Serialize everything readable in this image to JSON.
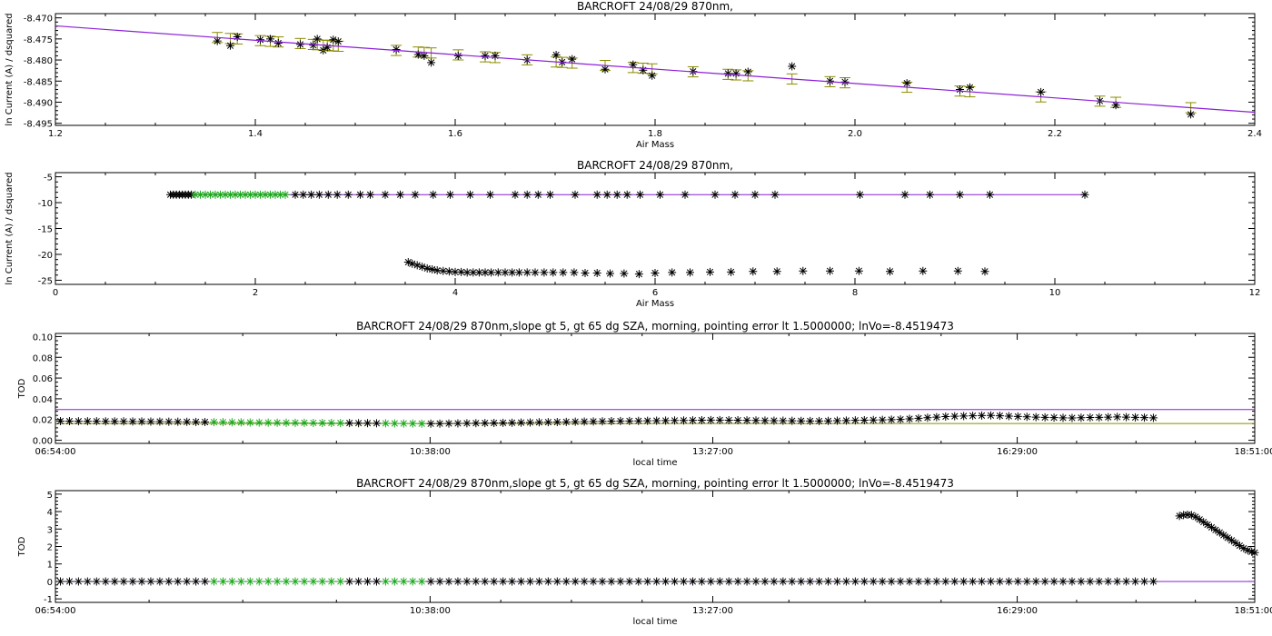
{
  "colors": {
    "fit_line": "#8a1fd6",
    "error_bar": "#8b8b00",
    "point": "#000000",
    "selected_point": "#1aa81a",
    "axis": "#000000"
  },
  "chart_data": [
    {
      "type": "scatter",
      "title": "BARCROFT 24/08/29 870nm,",
      "xlabel": "Air Mass",
      "ylabel": "ln Current (A) / dsquared",
      "xlim": [
        1.2,
        2.4
      ],
      "ylim": [
        -8.4955,
        -8.469
      ],
      "xticks": [
        1.2,
        1.4,
        1.6,
        1.8,
        2.0,
        2.2,
        2.4
      ],
      "xtick_labels": [
        "1.2",
        "1.4",
        "1.6",
        "1.8",
        "2.0",
        "2.2",
        "2.4"
      ],
      "yticks": [
        -8.47,
        -8.475,
        -8.48,
        -8.485,
        -8.49,
        -8.495
      ],
      "ytick_labels": [
        "-8.470",
        "-8.475",
        "-8.480",
        "-8.485",
        "-8.490",
        "-8.495"
      ],
      "fit_line": {
        "x": [
          1.2,
          2.4
        ],
        "y": [
          -8.4719,
          -8.4924
        ]
      },
      "points": {
        "x": [
          1.362,
          1.375,
          1.382,
          1.405,
          1.415,
          1.423,
          1.445,
          1.458,
          1.462,
          1.468,
          1.472,
          1.478,
          1.483,
          1.541,
          1.563,
          1.569,
          1.576,
          1.603,
          1.63,
          1.64,
          1.672,
          1.701,
          1.707,
          1.717,
          1.75,
          1.778,
          1.788,
          1.797,
          1.838,
          1.873,
          1.881,
          1.893,
          1.937,
          1.975,
          1.99,
          2.052,
          2.105,
          2.115,
          2.186,
          2.245,
          2.261,
          2.336
        ],
        "y": [
          -8.4755,
          -8.4766,
          -8.4745,
          -8.4752,
          -8.475,
          -8.476,
          -8.4763,
          -8.4765,
          -8.475,
          -8.4777,
          -8.477,
          -8.4752,
          -8.4756,
          -8.4775,
          -8.4787,
          -8.479,
          -8.4806,
          -8.479,
          -8.479,
          -8.479,
          -8.48,
          -8.4788,
          -8.4805,
          -8.4798,
          -8.4822,
          -8.4811,
          -8.4824,
          -8.4837,
          -8.4827,
          -8.4832,
          -8.4832,
          -8.4828,
          -8.4815,
          -8.485,
          -8.4852,
          -8.4855,
          -8.487,
          -8.4865,
          -8.4876,
          -8.4897,
          -8.4907,
          -8.4929
        ],
        "err": 0.0012
      }
    },
    {
      "type": "scatter",
      "title": "BARCROFT 24/08/29 870nm,",
      "xlabel": "Air Mass",
      "ylabel": "ln Current (A) / dsquared",
      "xlim": [
        0,
        12
      ],
      "ylim": [
        -25.8,
        -4.2
      ],
      "xticks": [
        0,
        2,
        4,
        6,
        8,
        10,
        12
      ],
      "xtick_labels": [
        "0",
        "2",
        "4",
        "6",
        "8",
        "10",
        "12"
      ],
      "yticks": [
        -5,
        -10,
        -15,
        -20,
        -25
      ],
      "ytick_labels": [
        "-5",
        "-10",
        "-15",
        "-20",
        "-25"
      ],
      "fit_line": {
        "x": [
          1.15,
          10.3
        ],
        "y": [
          -8.45,
          -8.45
        ]
      },
      "upper_series_y": -8.46,
      "upper_series_x": [
        1.15,
        1.18,
        1.21,
        1.24,
        1.27,
        1.3,
        1.33,
        1.36,
        1.4,
        1.45,
        1.5,
        1.55,
        1.6,
        1.65,
        1.7,
        1.75,
        1.8,
        1.85,
        1.9,
        1.95,
        2.0,
        2.05,
        2.1,
        2.15,
        2.2,
        2.25,
        2.3,
        2.4,
        2.48,
        2.56,
        2.64,
        2.73,
        2.82,
        2.93,
        3.05,
        3.15,
        3.3,
        3.45,
        3.6,
        3.78,
        3.95,
        4.15,
        4.35,
        4.6,
        4.72,
        4.83,
        4.95,
        5.2,
        5.42,
        5.52,
        5.62,
        5.72,
        5.85,
        6.05,
        6.3,
        6.6,
        6.8,
        7.0,
        7.2,
        8.05,
        8.5,
        8.75,
        9.05,
        9.35,
        10.3
      ],
      "selected_x": [
        1.4,
        1.45,
        1.5,
        1.55,
        1.6,
        1.65,
        1.7,
        1.75,
        1.8,
        1.85,
        1.9,
        1.95,
        2.0,
        2.05,
        2.1,
        2.15,
        2.2,
        2.25,
        2.3
      ],
      "lower_series": {
        "x": [
          3.53,
          3.57,
          3.62,
          3.67,
          3.72,
          3.77,
          3.82,
          3.88,
          3.94,
          4.0,
          4.06,
          4.12,
          4.18,
          4.24,
          4.3,
          4.36,
          4.43,
          4.5,
          4.57,
          4.64,
          4.72,
          4.8,
          4.89,
          4.98,
          5.08,
          5.19,
          5.3,
          5.42,
          5.55,
          5.69,
          5.84,
          6.0,
          6.17,
          6.35,
          6.55,
          6.76,
          6.98,
          7.22,
          7.48,
          7.75,
          8.04,
          8.35,
          8.68,
          9.03,
          9.3
        ],
        "y": [
          -21.5,
          -21.8,
          -22.1,
          -22.4,
          -22.7,
          -22.9,
          -23.1,
          -23.2,
          -23.3,
          -23.4,
          -23.4,
          -23.5,
          -23.5,
          -23.5,
          -23.5,
          -23.5,
          -23.5,
          -23.5,
          -23.5,
          -23.5,
          -23.5,
          -23.5,
          -23.5,
          -23.5,
          -23.5,
          -23.5,
          -23.6,
          -23.6,
          -23.7,
          -23.7,
          -23.8,
          -23.6,
          -23.5,
          -23.5,
          -23.4,
          -23.4,
          -23.3,
          -23.3,
          -23.2,
          -23.2,
          -23.2,
          -23.3,
          -23.2,
          -23.2,
          -23.3
        ]
      }
    },
    {
      "type": "scatter",
      "title": "BARCROFT 24/08/29 870nm,slope gt 5, gt 65 dg SZA, morning, pointing error lt 1.5000000; lnVo=-8.4519473",
      "xlabel": "local time",
      "ylabel": "TOD",
      "xlim": [
        6.9,
        18.85
      ],
      "ylim": [
        -0.003,
        0.103
      ],
      "xticks": [
        6.9,
        10.6333,
        13.45,
        16.4833,
        18.85
      ],
      "xtick_labels": [
        "06:54:00",
        "10:38:00",
        "13:27:00",
        "16:29:00",
        "18:51:00"
      ],
      "yticks": [
        0,
        0.02,
        0.04,
        0.06,
        0.08,
        0.1
      ],
      "ytick_labels": [
        "0.00",
        "0.02",
        "0.04",
        "0.06",
        "0.08",
        "0.10"
      ],
      "hlines": [
        {
          "y": 0.0296,
          "x": [
            6.9,
            18.85
          ],
          "color": "#8a1fd6"
        },
        {
          "y": 0.0162,
          "x": [
            6.9,
            18.85
          ],
          "color": "#8b8b00"
        }
      ],
      "tod_profile": {
        "x": [
          6.9,
          8.0,
          9.0,
          10.0,
          10.65,
          11.5,
          12.5,
          13.5,
          14.5,
          15.3,
          15.8,
          16.2,
          16.6,
          17.0,
          17.5,
          17.9
        ],
        "y": [
          0.0185,
          0.018,
          0.017,
          0.0165,
          0.016,
          0.017,
          0.0185,
          0.0195,
          0.0185,
          0.02,
          0.023,
          0.024,
          0.0225,
          0.0215,
          0.0225,
          0.0215
        ]
      },
      "time_range": [
        6.95,
        17.9
      ],
      "time_step": 0.09,
      "selected_time_ranges": [
        [
          8.4,
          9.75
        ],
        [
          10.1,
          10.62
        ]
      ]
    },
    {
      "type": "scatter",
      "title": "BARCROFT 24/08/29 870nm,slope gt 5, gt 65 dg SZA, morning, pointing error lt 1.5000000; lnVo=-8.4519473",
      "xlabel": "local time",
      "ylabel": "TOD",
      "xlim": [
        6.9,
        18.85
      ],
      "ylim": [
        -1.2,
        5.2
      ],
      "xticks": [
        6.9,
        10.6333,
        13.45,
        16.4833,
        18.85
      ],
      "xtick_labels": [
        "06:54:00",
        "10:38:00",
        "13:27:00",
        "16:29:00",
        "18:51:00"
      ],
      "yticks": [
        -1,
        0,
        1,
        2,
        3,
        4,
        5
      ],
      "ytick_labels": [
        "-1",
        "0",
        "1",
        "2",
        "3",
        "4",
        "5"
      ],
      "fit_line": {
        "x": [
          6.9,
          18.85
        ],
        "y": [
          0,
          0
        ]
      },
      "time_range": [
        6.95,
        17.9
      ],
      "time_step": 0.09,
      "selected_time_ranges": [
        [
          8.4,
          9.75
        ],
        [
          10.1,
          10.62
        ]
      ],
      "evening_series": {
        "x": [
          18.1,
          18.14,
          18.18,
          18.22,
          18.26,
          18.3,
          18.34,
          18.38,
          18.42,
          18.46,
          18.5,
          18.54,
          18.58,
          18.62,
          18.66,
          18.7,
          18.74,
          18.78,
          18.82,
          18.85
        ],
        "y": [
          3.75,
          3.8,
          3.82,
          3.8,
          3.7,
          3.55,
          3.4,
          3.25,
          3.1,
          2.95,
          2.8,
          2.65,
          2.5,
          2.35,
          2.2,
          2.05,
          1.9,
          1.78,
          1.7,
          1.65
        ]
      }
    }
  ]
}
